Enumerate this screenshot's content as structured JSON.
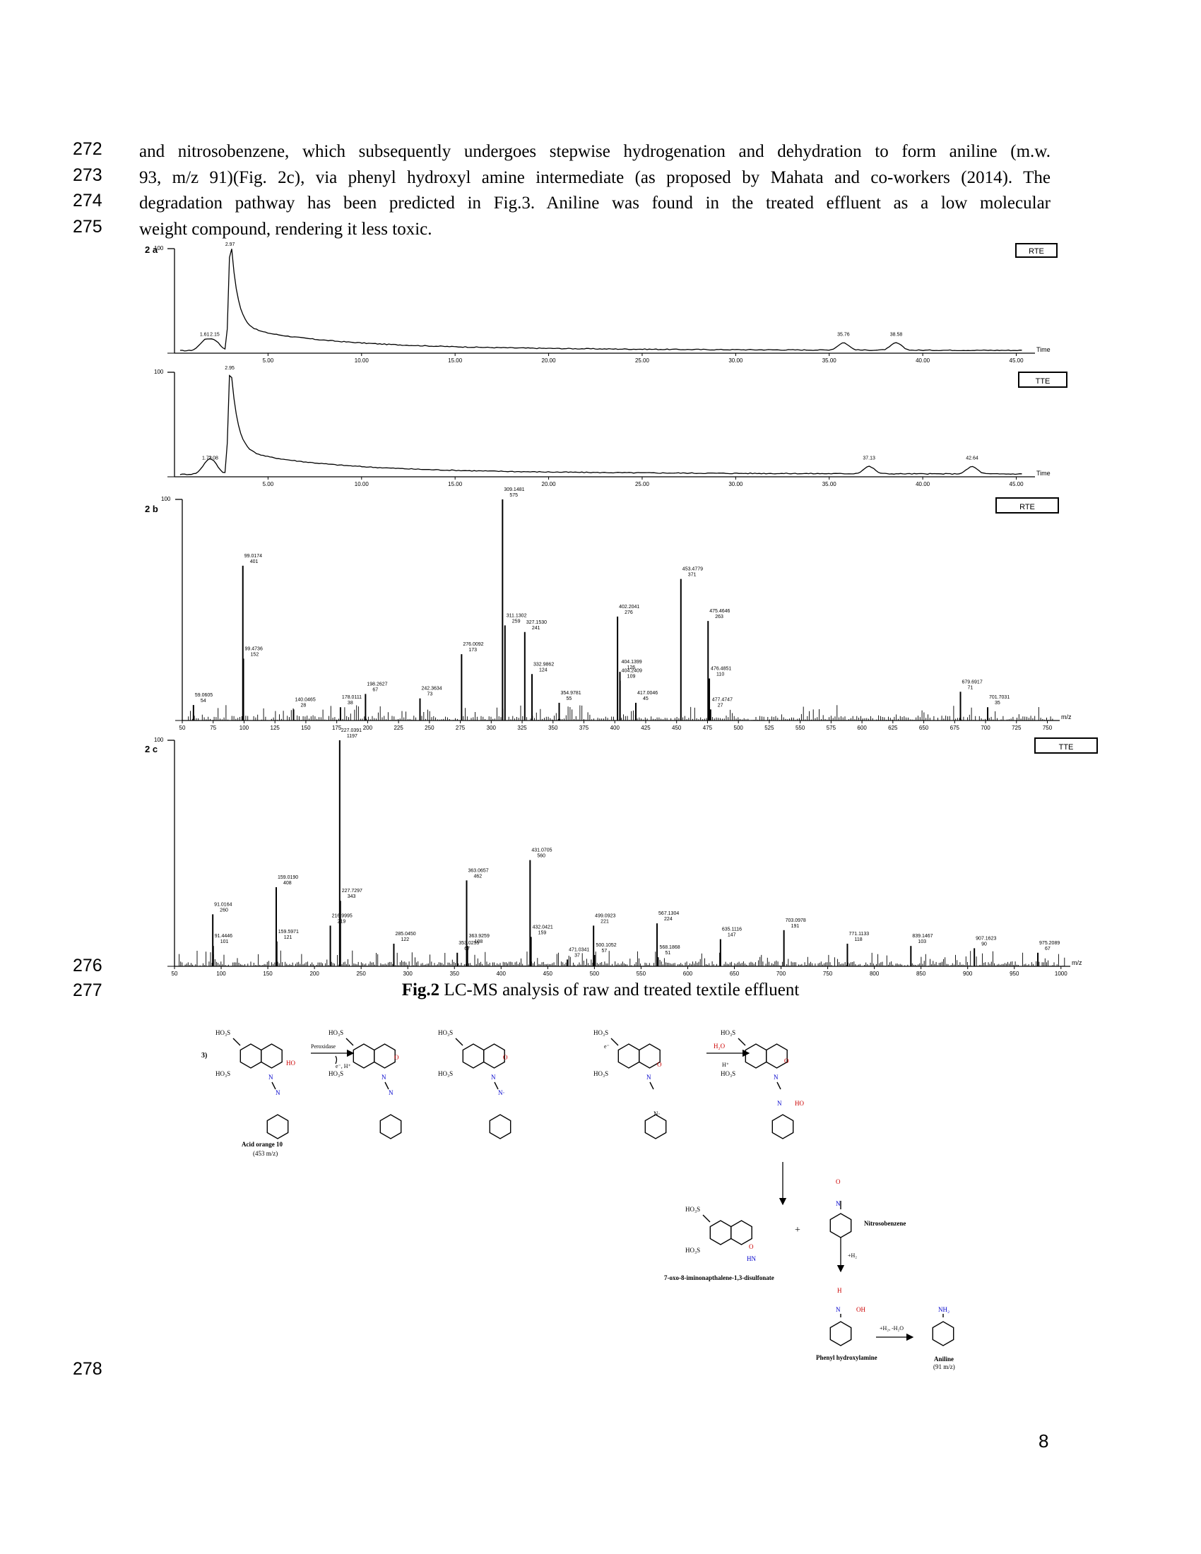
{
  "line_numbers": [
    "272",
    "273",
    "274",
    "275",
    "276",
    "277",
    "278"
  ],
  "paragraph_lines": [
    "and nitrosobenzene, which subsequently undergoes stepwise hydrogenation and dehydration to form aniline (m.w.",
    "93, m/z 91)(Fig. 2c), via phenyl hydroxyl amine intermediate (as proposed by Mahata and co-workers (2014). The",
    "degradation pathway has been predicted in Fig.3. Aniline was found in the treated effluent as a low molecular",
    "weight compound, rendering it less toxic."
  ],
  "caption": {
    "label": "Fig.2",
    "text": " LC-MS analysis of raw and treated textile effluent"
  },
  "page_number": "8",
  "chart_data": [
    {
      "type": "line",
      "panel_label": "2 a",
      "box_label": "RTE",
      "ytick_top": "100",
      "xlabel": "Time",
      "xlim": [
        0,
        46
      ],
      "xticks": [
        "5.00",
        "10.00",
        "15.00",
        "20.00",
        "25.00",
        "30.00",
        "35.00",
        "40.00",
        "45.00"
      ],
      "peaks": [
        {
          "x": 1.61,
          "label": "1.61"
        },
        {
          "x": 2.15,
          "label": "2.15"
        },
        {
          "x": 2.97,
          "label": "2.97"
        },
        {
          "x": 35.76,
          "label": "35.76"
        },
        {
          "x": 38.58,
          "label": "38.58"
        }
      ]
    },
    {
      "type": "line",
      "panel_label": "",
      "box_label": "TTE",
      "ytick_top": "100",
      "xlabel": "Time",
      "xlim": [
        0,
        46
      ],
      "xticks": [
        "5.00",
        "10.00",
        "15.00",
        "20.00",
        "25.00",
        "30.00",
        "35.00",
        "40.00",
        "45.00"
      ],
      "peaks": [
        {
          "x": 1.73,
          "label": "1.73"
        },
        {
          "x": 2.08,
          "label": "2.08"
        },
        {
          "x": 2.95,
          "label": "2.95"
        },
        {
          "x": 37.13,
          "label": "37.13"
        },
        {
          "x": 42.64,
          "label": "42.64"
        }
      ]
    },
    {
      "type": "bar",
      "panel_label": "2 b",
      "box_label": "RTE",
      "ytick_top": "100",
      "xlabel": "m/z",
      "xlim": [
        50,
        760
      ],
      "xticks": [
        "50",
        "75",
        "100",
        "125",
        "150",
        "175",
        "200",
        "225",
        "250",
        "275",
        "300",
        "325",
        "350",
        "375",
        "400",
        "425",
        "450",
        "475",
        "500",
        "525",
        "550",
        "575",
        "600",
        "625",
        "650",
        "675",
        "700",
        "725",
        "750"
      ],
      "peaks": [
        {
          "mz": 59.0605,
          "y": 7,
          "label": "59.0605",
          "count": "54"
        },
        {
          "mz": 99.0174,
          "y": 70,
          "label": "99.0174",
          "count": "401"
        },
        {
          "mz": 99.4736,
          "y": 28,
          "label": "99.4736",
          "count": "152"
        },
        {
          "mz": 140.0465,
          "y": 5,
          "label": "140.0465",
          "count": "28"
        },
        {
          "mz": 178.0111,
          "y": 6,
          "label": "178.0111",
          "count": "38"
        },
        {
          "mz": 198.2627,
          "y": 12,
          "label": "198.2627",
          "count": "67"
        },
        {
          "mz": 242.3634,
          "y": 10,
          "label": "242.3634",
          "count": "73"
        },
        {
          "mz": 276.0092,
          "y": 30,
          "label": "276.0092",
          "count": "173"
        },
        {
          "mz": 309.1481,
          "y": 100,
          "label": "309.1481",
          "count": "575"
        },
        {
          "mz": 311.1302,
          "y": 43,
          "label": "311.1302",
          "count": "259"
        },
        {
          "mz": 327.153,
          "y": 40,
          "label": "327.1530",
          "count": "241"
        },
        {
          "mz": 332.9862,
          "y": 21,
          "label": "332.9862",
          "count": "124"
        },
        {
          "mz": 354.9781,
          "y": 8,
          "label": "354.9781",
          "count": "55"
        },
        {
          "mz": 402.2041,
          "y": 47,
          "label": "402.2041",
          "count": "276"
        },
        {
          "mz": 404.1399,
          "y": 22,
          "label": "404.1399",
          "count": "126"
        },
        {
          "mz": 404.2409,
          "y": 18,
          "label": "404.2409",
          "count": "109"
        },
        {
          "mz": 417.0046,
          "y": 8,
          "label": "417.0046",
          "count": "45"
        },
        {
          "mz": 453.4779,
          "y": 64,
          "label": "453.4779",
          "count": "371"
        },
        {
          "mz": 475.4646,
          "y": 45,
          "label": "475.4646",
          "count": "263"
        },
        {
          "mz": 476.4851,
          "y": 19,
          "label": "476.4851",
          "count": "110"
        },
        {
          "mz": 477.4747,
          "y": 5,
          "label": "477.4747",
          "count": "27"
        },
        {
          "mz": 679.6917,
          "y": 13,
          "label": "679.6917",
          "count": "71"
        },
        {
          "mz": 701.7031,
          "y": 6,
          "label": "701.7031",
          "count": "35"
        }
      ]
    },
    {
      "type": "bar",
      "panel_label": "2 c",
      "box_label": "TTE",
      "ytick_top": "100",
      "xlabel": "m/z",
      "xlim": [
        50,
        1010
      ],
      "xticks": [
        "50",
        "100",
        "150",
        "200",
        "250",
        "300",
        "350",
        "400",
        "450",
        "500",
        "550",
        "600",
        "650",
        "700",
        "750",
        "800",
        "850",
        "900",
        "950",
        "1000"
      ],
      "peaks": [
        {
          "mz": 91.0164,
          "y": 23,
          "label": "91.0164",
          "count": "260"
        },
        {
          "mz": 91.4446,
          "y": 9,
          "label": "91.4446",
          "count": "101"
        },
        {
          "mz": 159.019,
          "y": 35,
          "label": "159.0190",
          "count": "408"
        },
        {
          "mz": 159.5971,
          "y": 11,
          "label": "159.5971",
          "count": "121"
        },
        {
          "mz": 216.9995,
          "y": 18,
          "label": "216.9995",
          "count": "219"
        },
        {
          "mz": 227.0391,
          "y": 100,
          "label": "227.0391",
          "count": "1197"
        },
        {
          "mz": 227.7297,
          "y": 29,
          "label": "227.7297",
          "count": "343"
        },
        {
          "mz": 285.045,
          "y": 10,
          "label": "285.0450",
          "count": "122"
        },
        {
          "mz": 353.0255,
          "y": 6,
          "label": "353.0255",
          "count": "67"
        },
        {
          "mz": 363.0657,
          "y": 38,
          "label": "363.0657",
          "count": "462"
        },
        {
          "mz": 363.9259,
          "y": 9,
          "label": "363.9259",
          "count": "108"
        },
        {
          "mz": 431.0705,
          "y": 47,
          "label": "431.0705",
          "count": "560"
        },
        {
          "mz": 432.0421,
          "y": 13,
          "label": "432.0421",
          "count": "159"
        },
        {
          "mz": 471.0341,
          "y": 3,
          "label": "471.0341",
          "count": "37"
        },
        {
          "mz": 499.0923,
          "y": 18,
          "label": "499.0923",
          "count": "221"
        },
        {
          "mz": 500.1052,
          "y": 5,
          "label": "500.1052",
          "count": "57"
        },
        {
          "mz": 567.1304,
          "y": 19,
          "label": "567.1304",
          "count": "224"
        },
        {
          "mz": 568.1868,
          "y": 4,
          "label": "568.1868",
          "count": "51"
        },
        {
          "mz": 635.1116,
          "y": 12,
          "label": "635.1116",
          "count": "147"
        },
        {
          "mz": 703.0978,
          "y": 16,
          "label": "703.0978",
          "count": "191"
        },
        {
          "mz": 771.1133,
          "y": 10,
          "label": "771.1133",
          "count": "118"
        },
        {
          "mz": 839.1467,
          "y": 9,
          "label": "839.1467",
          "count": "103"
        },
        {
          "mz": 907.1623,
          "y": 8,
          "label": "907.1623",
          "count": "90"
        },
        {
          "mz": 975.2089,
          "y": 6,
          "label": "975.2089",
          "count": "67"
        }
      ]
    }
  ],
  "scheme": {
    "panel_label": "3)",
    "peroxidase": "Peroxidase",
    "e_h": "e⁻, H⁺",
    "e": "e⁻",
    "h2o": "H₂O",
    "h_plus": "H⁺",
    "hydrogenation": "+H₂",
    "dehydration": "+H₂, -H₂O",
    "so3h": "HO₃S",
    "ho": "HO",
    "o": "O",
    "n": "N",
    "n_dot": "N·",
    "h": "H",
    "oh": "OH",
    "hn": "HN",
    "nh2": "NH₂",
    "compounds": {
      "acid_orange": "Acid orange 10",
      "acid_orange_mz": "(453 m/z)",
      "naphthalene": "7-oxo-8-iminonapthalene-1,3-disulfonate",
      "nitroso": "Nitrosobenzene",
      "phenylhydroxylamine": "Phenyl hydroxylamine",
      "aniline": "Aniline",
      "aniline_mz": "(91 m/z)"
    }
  }
}
